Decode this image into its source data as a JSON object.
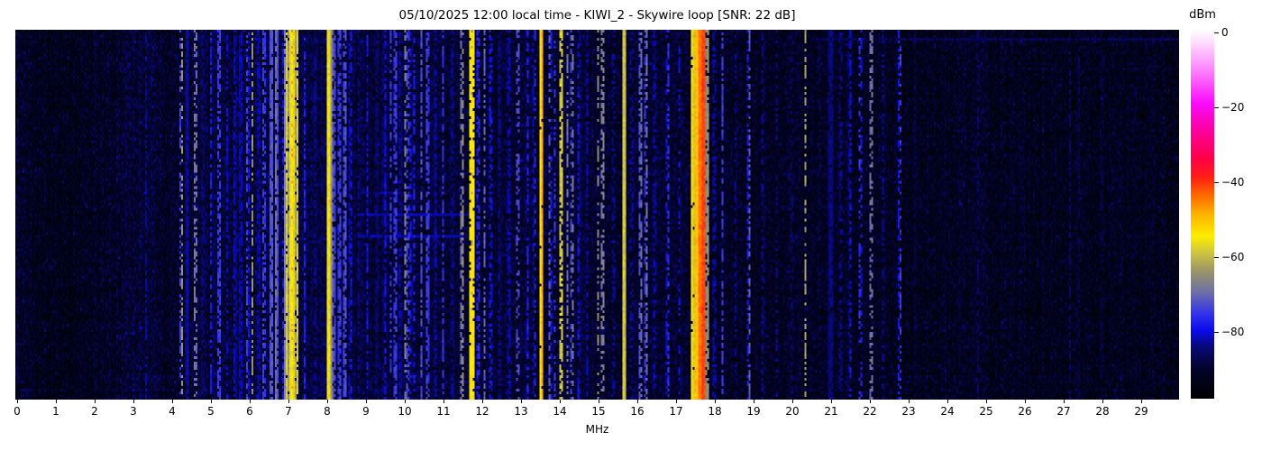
{
  "chart_data": {
    "type": "heatmap",
    "subtype": "rf-spectrum-waterfall",
    "title": "05/10/2025 12:00 local time - KIWI_2 - Skywire loop [SNR: 22 dB]",
    "xlabel": "MHz",
    "x_range_mhz": [
      0,
      30.07
    ],
    "x_ticks": [
      0,
      1,
      2,
      3,
      4,
      5,
      6,
      7,
      8,
      9,
      10,
      11,
      12,
      13,
      14,
      15,
      16,
      17,
      18,
      19,
      20,
      21,
      22,
      23,
      24,
      25,
      26,
      27,
      28,
      29
    ],
    "y_axis_note": "time (no ticks shown)",
    "grid": false,
    "legend": false,
    "color_scale": {
      "label": "dBm",
      "ticks": [
        {
          "v": 0,
          "label": "0"
        },
        {
          "v": -20,
          "label": "−20"
        },
        {
          "v": -40,
          "label": "−40"
        },
        {
          "v": -60,
          "label": "−60"
        },
        {
          "v": -80,
          "label": "−80"
        }
      ],
      "vmax": 0.8,
      "vmin": -98.0
    },
    "colormap_stops": [
      {
        "t": 0.0,
        "c": "#000000"
      },
      {
        "t": 0.08,
        "c": "#03032a"
      },
      {
        "t": 0.14,
        "c": "#080878"
      },
      {
        "t": 0.185,
        "c": "#0a0aeb"
      },
      {
        "t": 0.23,
        "c": "#3232eb"
      },
      {
        "t": 0.29,
        "c": "#6e70a5"
      },
      {
        "t": 0.345,
        "c": "#989469"
      },
      {
        "t": 0.4,
        "c": "#d2c83c"
      },
      {
        "t": 0.44,
        "c": "#fcee00"
      },
      {
        "t": 0.5,
        "c": "#ffb200"
      },
      {
        "t": 0.555,
        "c": "#ff6400"
      },
      {
        "t": 0.6,
        "c": "#ff1e14"
      },
      {
        "t": 0.65,
        "c": "#ff0046"
      },
      {
        "t": 0.72,
        "c": "#fc0096"
      },
      {
        "t": 0.8,
        "c": "#fa0afa"
      },
      {
        "t": 0.89,
        "c": "#fd82fd"
      },
      {
        "t": 0.965,
        "c": "#ffdcff"
      },
      {
        "t": 1.0,
        "c": "#ffffff"
      }
    ],
    "noise_floor_profile_mhz_dbm": [
      [
        0,
        -91
      ],
      [
        0.6,
        -92
      ],
      [
        1.3,
        -93
      ],
      [
        2.0,
        -92
      ],
      [
        2.4,
        -91.5
      ],
      [
        3.0,
        -89.5
      ],
      [
        3.5,
        -89.5
      ],
      [
        4.0,
        -91.5
      ],
      [
        4.5,
        -90
      ],
      [
        5.0,
        -89.5
      ],
      [
        6.0,
        -89
      ],
      [
        7.5,
        -89
      ],
      [
        9.0,
        -89.5
      ],
      [
        10.5,
        -89.5
      ],
      [
        11.5,
        -90
      ],
      [
        12.5,
        -90.5
      ],
      [
        13.5,
        -90
      ],
      [
        15.0,
        -90.5
      ],
      [
        17.0,
        -90.5
      ],
      [
        18.0,
        -91
      ],
      [
        19.0,
        -92
      ],
      [
        21.0,
        -91.5
      ],
      [
        22.0,
        -92
      ],
      [
        23.0,
        -92.5
      ],
      [
        24.5,
        -92
      ],
      [
        26.0,
        -92.5
      ],
      [
        30.0,
        -92.5
      ]
    ],
    "horizontal_streaks": [
      {
        "f0": 8.8,
        "f1": 11.8,
        "row_frac": 0.5,
        "dbm": -82
      },
      {
        "f0": 8.8,
        "f1": 11.6,
        "row_frac": 0.558,
        "dbm": -82
      },
      {
        "f0": 8.9,
        "f1": 10.0,
        "row_frac": 0.44,
        "dbm": -84
      },
      {
        "f0": 20.5,
        "f1": 30.0,
        "row_frac": 0.02,
        "dbm": -87
      }
    ],
    "signals": [
      {
        "f": 3.33,
        "w": 0.03,
        "p": -82,
        "d": 0.5
      },
      {
        "f": 4.21,
        "w": 0.03,
        "p": -74,
        "d": 0.5
      },
      {
        "f": 4.26,
        "w": 0.035,
        "p": -63,
        "d": 0.5
      },
      {
        "f": 4.38,
        "w": 0.05,
        "p": -79,
        "d": 0.9
      },
      {
        "f": 4.6,
        "w": 0.035,
        "p": -64,
        "d": 0.5
      },
      {
        "f": 4.79,
        "w": 0.03,
        "p": -80,
        "d": 0.5
      },
      {
        "f": 5.0,
        "w": 0.03,
        "p": -78,
        "d": 0.6
      },
      {
        "f": 5.21,
        "w": 0.04,
        "p": -70,
        "d": 0.65
      },
      {
        "f": 5.42,
        "w": 0.03,
        "p": -80,
        "d": 0.5
      },
      {
        "f": 5.62,
        "w": 0.04,
        "p": -78,
        "d": 0.7
      },
      {
        "f": 5.77,
        "w": 0.04,
        "p": -77,
        "d": 0.7
      },
      {
        "f": 5.94,
        "w": 0.03,
        "p": -72,
        "d": 0.55
      },
      {
        "f": 6.07,
        "w": 0.04,
        "p": -64,
        "d": 0.55
      },
      {
        "f": 6.23,
        "w": 0.03,
        "p": -77,
        "d": 0.6
      },
      {
        "f": 6.37,
        "w": 0.04,
        "p": -70,
        "d": 0.6
      },
      {
        "f": 6.56,
        "w": 0.06,
        "p": -69,
        "d": 0.9
      },
      {
        "f": 6.69,
        "w": 0.05,
        "p": -67,
        "d": 0.85
      },
      {
        "f": 6.87,
        "w": 0.03,
        "p": -76,
        "d": 0.5
      },
      {
        "f": 6.96,
        "w": 0.07,
        "p": -58,
        "d": 0.9
      },
      {
        "f": 7.09,
        "w": 0.12,
        "p": -55,
        "d": 1.0
      },
      {
        "f": 7.09,
        "w": 0.08,
        "p": -47,
        "d": 0.12
      },
      {
        "f": 7.22,
        "w": 0.07,
        "p": -58,
        "d": 0.85
      },
      {
        "f": 7.42,
        "w": 0.04,
        "p": -77,
        "d": 0.6
      },
      {
        "f": 7.71,
        "w": 0.03,
        "p": -80,
        "d": 0.5
      },
      {
        "f": 7.9,
        "w": 0.03,
        "p": -82,
        "d": 0.4
      },
      {
        "f": 8.05,
        "w": 0.1,
        "p": -56,
        "d": 1.0
      },
      {
        "f": 8.05,
        "w": 0.06,
        "p": -48,
        "d": 0.1
      },
      {
        "f": 8.18,
        "w": 0.04,
        "p": -68,
        "d": 0.7
      },
      {
        "f": 8.33,
        "w": 0.04,
        "p": -70,
        "d": 0.65
      },
      {
        "f": 8.47,
        "w": 0.05,
        "p": -69,
        "d": 0.7
      },
      {
        "f": 8.61,
        "w": 0.03,
        "p": -75,
        "d": 0.5
      },
      {
        "f": 8.83,
        "w": 0.03,
        "p": -80,
        "d": 0.55
      },
      {
        "f": 9.05,
        "w": 0.03,
        "p": -78,
        "d": 0.5
      },
      {
        "f": 9.3,
        "w": 0.03,
        "p": -80,
        "d": 0.5
      },
      {
        "f": 9.5,
        "w": 0.04,
        "p": -77,
        "d": 0.65
      },
      {
        "f": 9.65,
        "w": 0.03,
        "p": -74,
        "d": 0.5
      },
      {
        "f": 9.77,
        "w": 0.04,
        "p": -70,
        "d": 0.6
      },
      {
        "f": 9.9,
        "w": 0.03,
        "p": -78,
        "d": 0.5
      },
      {
        "f": 10.03,
        "w": 0.05,
        "p": -66,
        "d": 0.5
      },
      {
        "f": 10.13,
        "w": 0.03,
        "p": -72,
        "d": 0.4
      },
      {
        "f": 10.25,
        "w": 0.03,
        "p": -76,
        "d": 0.5
      },
      {
        "f": 10.44,
        "w": 0.04,
        "p": -72,
        "d": 0.6
      },
      {
        "f": 10.6,
        "w": 0.04,
        "p": -70,
        "d": 0.6
      },
      {
        "f": 10.8,
        "w": 0.03,
        "p": -78,
        "d": 0.5
      },
      {
        "f": 11.0,
        "w": 0.04,
        "p": -75,
        "d": 0.5
      },
      {
        "f": 11.25,
        "w": 0.03,
        "p": -79,
        "d": 0.5
      },
      {
        "f": 11.5,
        "w": 0.05,
        "p": -63,
        "d": 0.55
      },
      {
        "f": 11.7,
        "w": 0.05,
        "p": -54,
        "d": 0.8
      },
      {
        "f": 11.77,
        "w": 0.05,
        "p": -50,
        "d": 0.9
      },
      {
        "f": 11.91,
        "w": 0.03,
        "p": -72,
        "d": 0.5
      },
      {
        "f": 12.07,
        "w": 0.04,
        "p": -70,
        "d": 0.6
      },
      {
        "f": 12.23,
        "w": 0.04,
        "p": -74,
        "d": 0.5
      },
      {
        "f": 12.46,
        "w": 0.03,
        "p": -79,
        "d": 0.5
      },
      {
        "f": 12.7,
        "w": 0.04,
        "p": -77,
        "d": 0.55
      },
      {
        "f": 12.93,
        "w": 0.03,
        "p": -68,
        "d": 0.4
      },
      {
        "f": 13.18,
        "w": 0.03,
        "p": -76,
        "d": 0.5
      },
      {
        "f": 13.36,
        "w": 0.03,
        "p": -74,
        "d": 0.4
      },
      {
        "f": 13.55,
        "w": 0.06,
        "p": -48,
        "d": 0.97
      },
      {
        "f": 13.75,
        "w": 0.04,
        "p": -70,
        "d": 0.5
      },
      {
        "f": 13.88,
        "w": 0.03,
        "p": -74,
        "d": 0.45
      },
      {
        "f": 14.05,
        "w": 0.09,
        "p": -58,
        "d": 0.7
      },
      {
        "f": 14.05,
        "w": 0.05,
        "p": -50,
        "d": 0.08
      },
      {
        "f": 14.21,
        "w": 0.04,
        "p": -68,
        "d": 0.5
      },
      {
        "f": 14.34,
        "w": 0.04,
        "p": -66,
        "d": 0.5
      },
      {
        "f": 14.5,
        "w": 0.03,
        "p": -76,
        "d": 0.55
      },
      {
        "f": 14.71,
        "w": 0.03,
        "p": -79,
        "d": 0.45
      },
      {
        "f": 15.0,
        "w": 0.04,
        "p": -65,
        "d": 0.5
      },
      {
        "f": 15.12,
        "w": 0.05,
        "p": -63,
        "d": 0.55
      },
      {
        "f": 15.4,
        "w": 0.03,
        "p": -78,
        "d": 0.4
      },
      {
        "f": 15.67,
        "w": 0.045,
        "p": -54,
        "d": 1.0
      },
      {
        "f": 15.86,
        "w": 0.03,
        "p": -78,
        "d": 0.4
      },
      {
        "f": 16.1,
        "w": 0.05,
        "p": -67,
        "d": 0.6
      },
      {
        "f": 16.25,
        "w": 0.05,
        "p": -68,
        "d": 0.6
      },
      {
        "f": 16.46,
        "w": 0.03,
        "p": -77,
        "d": 0.4
      },
      {
        "f": 16.8,
        "w": 0.04,
        "p": -73,
        "d": 0.5
      },
      {
        "f": 17.1,
        "w": 0.03,
        "p": -78,
        "d": 0.4
      },
      {
        "f": 17.43,
        "w": 0.05,
        "p": -52,
        "d": 0.95
      },
      {
        "f": 17.53,
        "w": 0.06,
        "p": -47,
        "d": 1.0
      },
      {
        "f": 17.63,
        "w": 0.05,
        "p": -40,
        "d": 1.0
      },
      {
        "f": 17.72,
        "w": 0.04,
        "p": -36,
        "d": 1.0
      },
      {
        "f": 17.82,
        "w": 0.04,
        "p": -60,
        "d": 0.8
      },
      {
        "f": 18.0,
        "w": 0.03,
        "p": -77,
        "d": 0.5
      },
      {
        "f": 18.21,
        "w": 0.04,
        "p": -74,
        "d": 0.6
      },
      {
        "f": 18.55,
        "w": 0.03,
        "p": -80,
        "d": 0.4
      },
      {
        "f": 18.9,
        "w": 0.04,
        "p": -70,
        "d": 0.5
      },
      {
        "f": 19.25,
        "w": 0.03,
        "p": -79,
        "d": 0.4
      },
      {
        "f": 19.6,
        "w": 0.03,
        "p": -82,
        "d": 0.35
      },
      {
        "f": 20.0,
        "w": 0.03,
        "p": -81,
        "d": 0.35
      },
      {
        "f": 20.35,
        "w": 0.04,
        "p": -62,
        "d": 0.5
      },
      {
        "f": 20.7,
        "w": 0.03,
        "p": -82,
        "d": 0.3
      },
      {
        "f": 21.0,
        "w": 0.13,
        "p": -84,
        "d": 0.9
      },
      {
        "f": 21.26,
        "w": 0.03,
        "p": -79,
        "d": 0.4
      },
      {
        "f": 21.5,
        "w": 0.04,
        "p": -77,
        "d": 0.55
      },
      {
        "f": 21.76,
        "w": 0.04,
        "p": -72,
        "d": 0.4
      },
      {
        "f": 22.05,
        "w": 0.05,
        "p": -65,
        "d": 0.5
      },
      {
        "f": 22.36,
        "w": 0.03,
        "p": -80,
        "d": 0.4
      },
      {
        "f": 22.8,
        "w": 0.025,
        "p": -72,
        "d": 0.5
      },
      {
        "f": 23.2,
        "w": 0.02,
        "p": -85,
        "d": 0.4
      },
      {
        "f": 24.8,
        "w": 0.03,
        "p": -83,
        "d": 0.5
      },
      {
        "f": 25.9,
        "w": 0.02,
        "p": -86,
        "d": 0.4
      },
      {
        "f": 27.2,
        "w": 0.03,
        "p": -83,
        "d": 0.5
      },
      {
        "f": 27.4,
        "w": 0.03,
        "p": -84,
        "d": 0.5
      },
      {
        "f": 28.0,
        "w": 0.03,
        "p": -84,
        "d": 0.5
      },
      {
        "f": 29.3,
        "w": 0.02,
        "p": -86,
        "d": 0.35
      }
    ]
  }
}
